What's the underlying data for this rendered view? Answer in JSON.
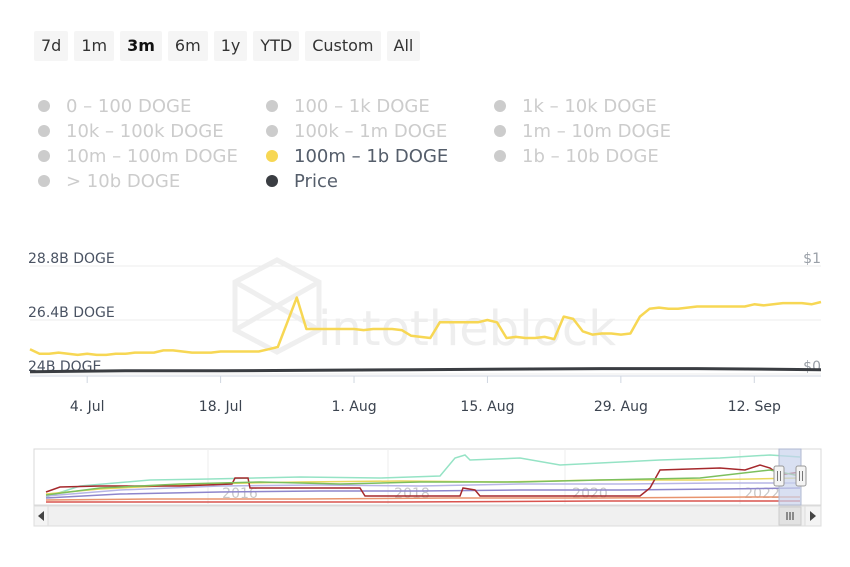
{
  "range_selector": {
    "buttons": [
      {
        "label": "7d",
        "active": false
      },
      {
        "label": "1m",
        "active": false
      },
      {
        "label": "3m",
        "active": true
      },
      {
        "label": "6m",
        "active": false
      },
      {
        "label": "1y",
        "active": false
      },
      {
        "label": "YTD",
        "active": false
      },
      {
        "label": "Custom",
        "active": false
      },
      {
        "label": "All",
        "active": false
      }
    ]
  },
  "legend": {
    "items": [
      {
        "label": "0 – 100 DOGE",
        "active": false,
        "color": "#cccccc"
      },
      {
        "label": "100 – 1k DOGE",
        "active": false,
        "color": "#cccccc"
      },
      {
        "label": "1k – 10k DOGE",
        "active": false,
        "color": "#cccccc"
      },
      {
        "label": "10k – 100k DOGE",
        "active": false,
        "color": "#cccccc"
      },
      {
        "label": "100k – 1m DOGE",
        "active": false,
        "color": "#cccccc"
      },
      {
        "label": "1m – 10m DOGE",
        "active": false,
        "color": "#cccccc"
      },
      {
        "label": "10m – 100m DOGE",
        "active": false,
        "color": "#cccccc"
      },
      {
        "label": "100m – 1b DOGE",
        "active": true,
        "color": "#f7d754"
      },
      {
        "label": "1b – 10b DOGE",
        "active": false,
        "color": "#cccccc"
      },
      {
        "label": "> 10b DOGE",
        "active": false,
        "color": "#cccccc"
      },
      {
        "label": "Price",
        "active": true,
        "color": "#3a3d42"
      }
    ]
  },
  "watermark": "intotheblock",
  "chart_data": {
    "type": "line",
    "y_left_ticks": [
      "28.8B DOGE",
      "26.4B DOGE",
      "24B DOGE"
    ],
    "y_left_tick_values": [
      28.8,
      26.4,
      24
    ],
    "y_right_ticks": [
      "$1",
      "$0"
    ],
    "x_ticks": [
      "4. Jul",
      "18. Jul",
      "1. Aug",
      "15. Aug",
      "29. Aug",
      "12. Sep"
    ],
    "ylim_left": [
      24,
      28.8
    ],
    "ylim_right": [
      0,
      1
    ],
    "grid": true,
    "series": [
      {
        "name": "100m – 1b DOGE",
        "axis": "left",
        "color": "#f7d754",
        "x": [
          0,
          1,
          2,
          3,
          4,
          5,
          6,
          7,
          8,
          9,
          10,
          11,
          12,
          13,
          14,
          15,
          16,
          17,
          18,
          19,
          20,
          21,
          22,
          23,
          24,
          25,
          26,
          27,
          28,
          29,
          30,
          31,
          32,
          33,
          34,
          35,
          36,
          37,
          38,
          39,
          40,
          41,
          42,
          43,
          44,
          45,
          46,
          47,
          48,
          49,
          50,
          51,
          52,
          53,
          54,
          55,
          56,
          57,
          58,
          59,
          60,
          61,
          62,
          63,
          64,
          65,
          66,
          67,
          68,
          69,
          70,
          71,
          72,
          73,
          74,
          75,
          76,
          77,
          78,
          79,
          80,
          81,
          82,
          83
        ],
        "values": [
          25.1,
          24.9,
          24.9,
          24.95,
          24.9,
          24.85,
          24.9,
          24.85,
          24.85,
          24.9,
          24.9,
          24.95,
          24.95,
          24.95,
          25.05,
          25.05,
          25.0,
          24.95,
          24.95,
          24.95,
          25.0,
          25.0,
          25.0,
          25.0,
          25.0,
          25.1,
          25.2,
          26.3,
          27.4,
          26.0,
          26.0,
          26.0,
          26.0,
          26.0,
          26.0,
          25.95,
          26.0,
          26.0,
          26.0,
          25.95,
          25.7,
          25.65,
          25.6,
          26.3,
          26.3,
          26.3,
          26.3,
          26.3,
          26.4,
          26.3,
          25.6,
          25.65,
          25.6,
          25.6,
          25.65,
          25.55,
          26.55,
          26.45,
          25.9,
          25.75,
          25.8,
          25.8,
          25.75,
          25.8,
          26.55,
          26.9,
          26.95,
          26.9,
          26.9,
          26.95,
          27.0,
          27.0,
          27.0,
          27.0,
          27.0,
          27.0,
          27.1,
          27.05,
          27.1,
          27.15,
          27.15,
          27.15,
          27.1,
          27.2
        ]
      },
      {
        "name": "Price",
        "axis": "right",
        "color": "#3a3d42",
        "x": [
          0,
          10,
          20,
          30,
          40,
          50,
          60,
          70,
          83
        ],
        "values": [
          0.02,
          0.03,
          0.03,
          0.035,
          0.04,
          0.045,
          0.05,
          0.05,
          0.04
        ]
      }
    ],
    "navigator": {
      "x_labels": [
        "2016",
        "2018",
        "2020",
        "2022"
      ]
    }
  }
}
